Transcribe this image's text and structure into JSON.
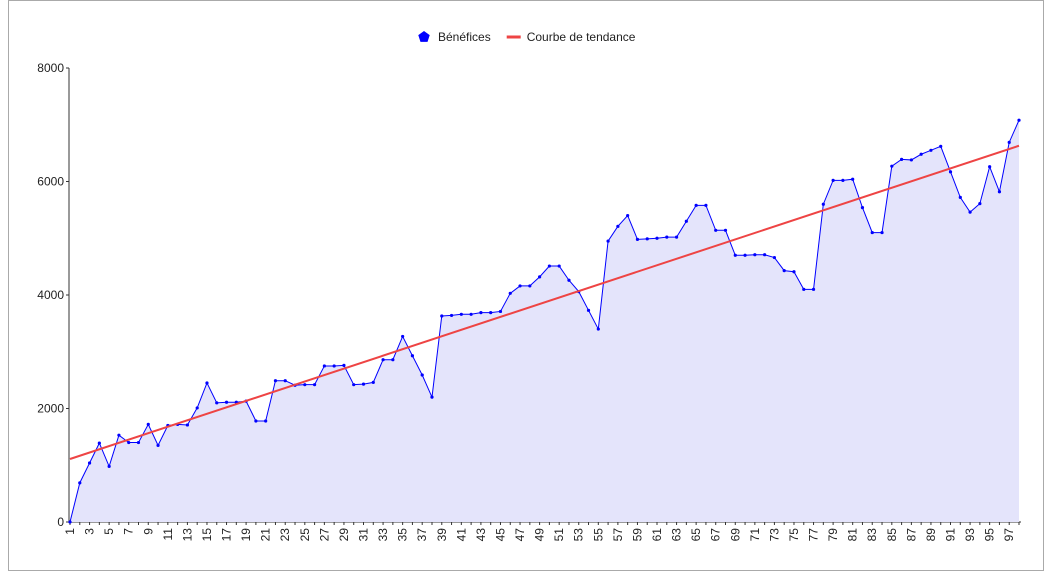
{
  "chart_data": {
    "type": "line",
    "categories": [
      1,
      null,
      3,
      null,
      5,
      null,
      7,
      null,
      9,
      null,
      11,
      null,
      13,
      null,
      15,
      null,
      17,
      null,
      19,
      null,
      21,
      null,
      23,
      null,
      25,
      null,
      27,
      null,
      29,
      null,
      31,
      null,
      33,
      null,
      35,
      null,
      37,
      null,
      39,
      null,
      41,
      null,
      43,
      null,
      45,
      null,
      47,
      null,
      49,
      null,
      51,
      null,
      53,
      null,
      55,
      null,
      57,
      null,
      59,
      null,
      61,
      null,
      63,
      null,
      65,
      null,
      67,
      null,
      69,
      null,
      71,
      null,
      73,
      null,
      75,
      null,
      77,
      null,
      79,
      null,
      81,
      null,
      83,
      null,
      85,
      null,
      87,
      null,
      89,
      null,
      91,
      null,
      93,
      null,
      95,
      null,
      97,
      null
    ],
    "series": [
      {
        "name": "Bénéfices",
        "color": "#0000ff",
        "area_color": "#e4e4fb",
        "values": [
          0,
          690,
          1040,
          1390,
          980,
          1530,
          1400,
          1400,
          1720,
          1350,
          1700,
          1720,
          1710,
          2010,
          2450,
          2100,
          2110,
          2110,
          2130,
          1780,
          1780,
          2490,
          2490,
          2410,
          2420,
          2420,
          2750,
          2750,
          2760,
          2420,
          2430,
          2460,
          2860,
          2860,
          3270,
          2930,
          2590,
          2200,
          3630,
          3640,
          3660,
          3660,
          3690,
          3690,
          3710,
          4030,
          4160,
          4160,
          4320,
          4510,
          4510,
          4260,
          4060,
          3730,
          3400,
          4950,
          5210,
          5400,
          4980,
          4990,
          5000,
          5020,
          5020,
          5300,
          5580,
          5580,
          5140,
          5140,
          4700,
          4700,
          4710,
          4710,
          4660,
          4430,
          4410,
          4100,
          4100,
          5600,
          6020,
          6020,
          6040,
          5540,
          5100,
          5100,
          6270,
          6390,
          6380,
          6480,
          6550,
          6620,
          6170,
          5720,
          5460,
          5610,
          6260,
          5820,
          6690,
          7080
        ]
      },
      {
        "name": "Courbe de tendance",
        "color": "#ee4444",
        "x": [
          1,
          98
        ],
        "values": [
          1110,
          6630
        ]
      }
    ],
    "ylim": [
      0,
      8000
    ],
    "yticks": [
      0,
      2000,
      4000,
      6000,
      8000
    ],
    "grid": false,
    "legend": "top"
  }
}
